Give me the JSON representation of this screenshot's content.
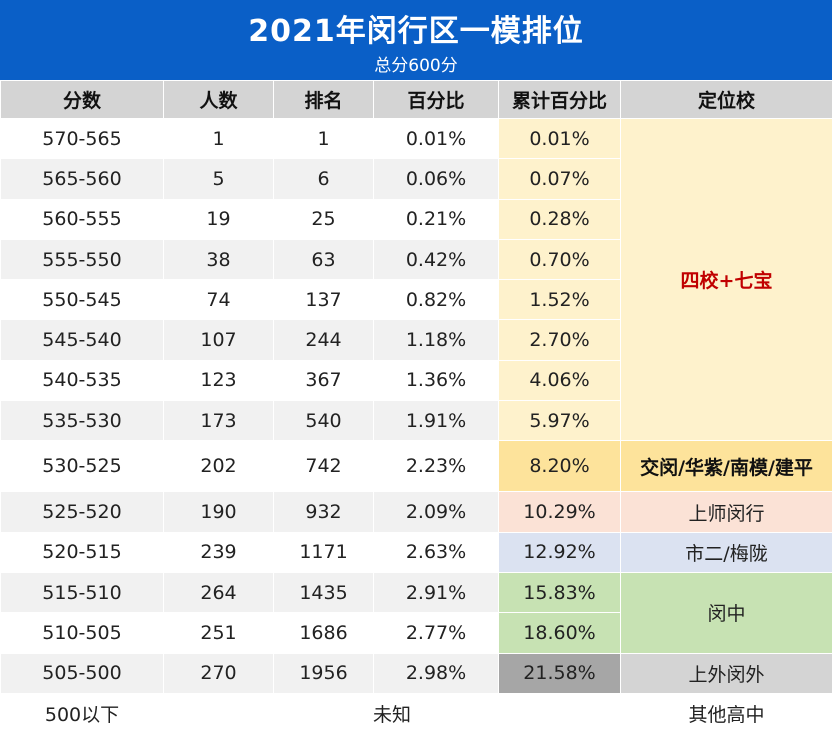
{
  "header": {
    "title": "2021年闵行区一模排位",
    "subtitle": "总分600分"
  },
  "columns": [
    "分数",
    "人数",
    "排名",
    "百分比",
    "累计百分比",
    "定位校"
  ],
  "rows": [
    {
      "score": "570-565",
      "count": "1",
      "rank": "1",
      "pct": "0.01%",
      "cum": "0.01%"
    },
    {
      "score": "565-560",
      "count": "5",
      "rank": "6",
      "pct": "0.06%",
      "cum": "0.07%"
    },
    {
      "score": "560-555",
      "count": "19",
      "rank": "25",
      "pct": "0.21%",
      "cum": "0.28%"
    },
    {
      "score": "555-550",
      "count": "38",
      "rank": "63",
      "pct": "0.42%",
      "cum": "0.70%"
    },
    {
      "score": "550-545",
      "count": "74",
      "rank": "137",
      "pct": "0.82%",
      "cum": "1.52%"
    },
    {
      "score": "545-540",
      "count": "107",
      "rank": "244",
      "pct": "1.18%",
      "cum": "2.70%"
    },
    {
      "score": "540-535",
      "count": "123",
      "rank": "367",
      "pct": "1.36%",
      "cum": "4.06%"
    },
    {
      "score": "535-530",
      "count": "173",
      "rank": "540",
      "pct": "1.91%",
      "cum": "5.97%"
    },
    {
      "score": "530-525",
      "count": "202",
      "rank": "742",
      "pct": "2.23%",
      "cum": "8.20%"
    },
    {
      "score": "525-520",
      "count": "190",
      "rank": "932",
      "pct": "2.09%",
      "cum": "10.29%"
    },
    {
      "score": "520-515",
      "count": "239",
      "rank": "1171",
      "pct": "2.63%",
      "cum": "12.92%"
    },
    {
      "score": "515-510",
      "count": "264",
      "rank": "1435",
      "pct": "2.91%",
      "cum": "15.83%"
    },
    {
      "score": "510-505",
      "count": "251",
      "rank": "1686",
      "pct": "2.77%",
      "cum": "18.60%"
    },
    {
      "score": "505-500",
      "count": "270",
      "rank": "1956",
      "pct": "2.98%",
      "cum": "21.58%"
    }
  ],
  "schools": {
    "group1": "四校+七宝",
    "group2": "交闵/华紫/南模/建平",
    "group3": "上师闵行",
    "group4": "市二/梅陇",
    "group5": "闵中",
    "group6": "上外闵外",
    "group7": "其他高中"
  },
  "last_row": {
    "score": "500以下",
    "unknown": "未知"
  },
  "colors": {
    "header_bg": "#0a5fc7",
    "school_group1_bg": "#fef2cc",
    "school_group1_text": "#c00000",
    "school_group2_bg": "#fde39b",
    "school_group3_bg": "#fbe2d6",
    "school_group4_bg": "#dbe2f1",
    "school_group5_bg": "#c7e2b3",
    "school_group6_bg": "#a6a6a6"
  }
}
